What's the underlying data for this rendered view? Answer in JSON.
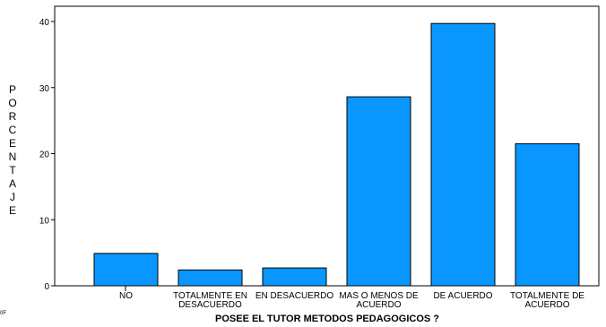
{
  "chart_data": {
    "type": "bar",
    "title": "",
    "xlabel": "POSEE EL TUTOR METODOS PEDAGOGICOS ?",
    "ylabel": "PORCENTAJE",
    "categories": [
      [
        "NO"
      ],
      [
        "TOTALMENTE EN",
        "DESACUERDO"
      ],
      [
        "EN DESACUERDO"
      ],
      [
        "MAS O MENOS DE",
        "ACUERDO"
      ],
      [
        "DE ACUERDO"
      ],
      [
        "TOTALMENTE DE",
        "ACUERDO"
      ]
    ],
    "values": [
      4.9,
      2.4,
      2.7,
      28.6,
      39.7,
      21.5
    ],
    "ylim": [
      0,
      40.5
    ],
    "yticks": [
      0,
      10,
      20,
      30,
      40
    ],
    "grid": false,
    "bar_color": "#0a96ff",
    "bar_stroke": "#000000"
  },
  "corner_mark": "0F"
}
